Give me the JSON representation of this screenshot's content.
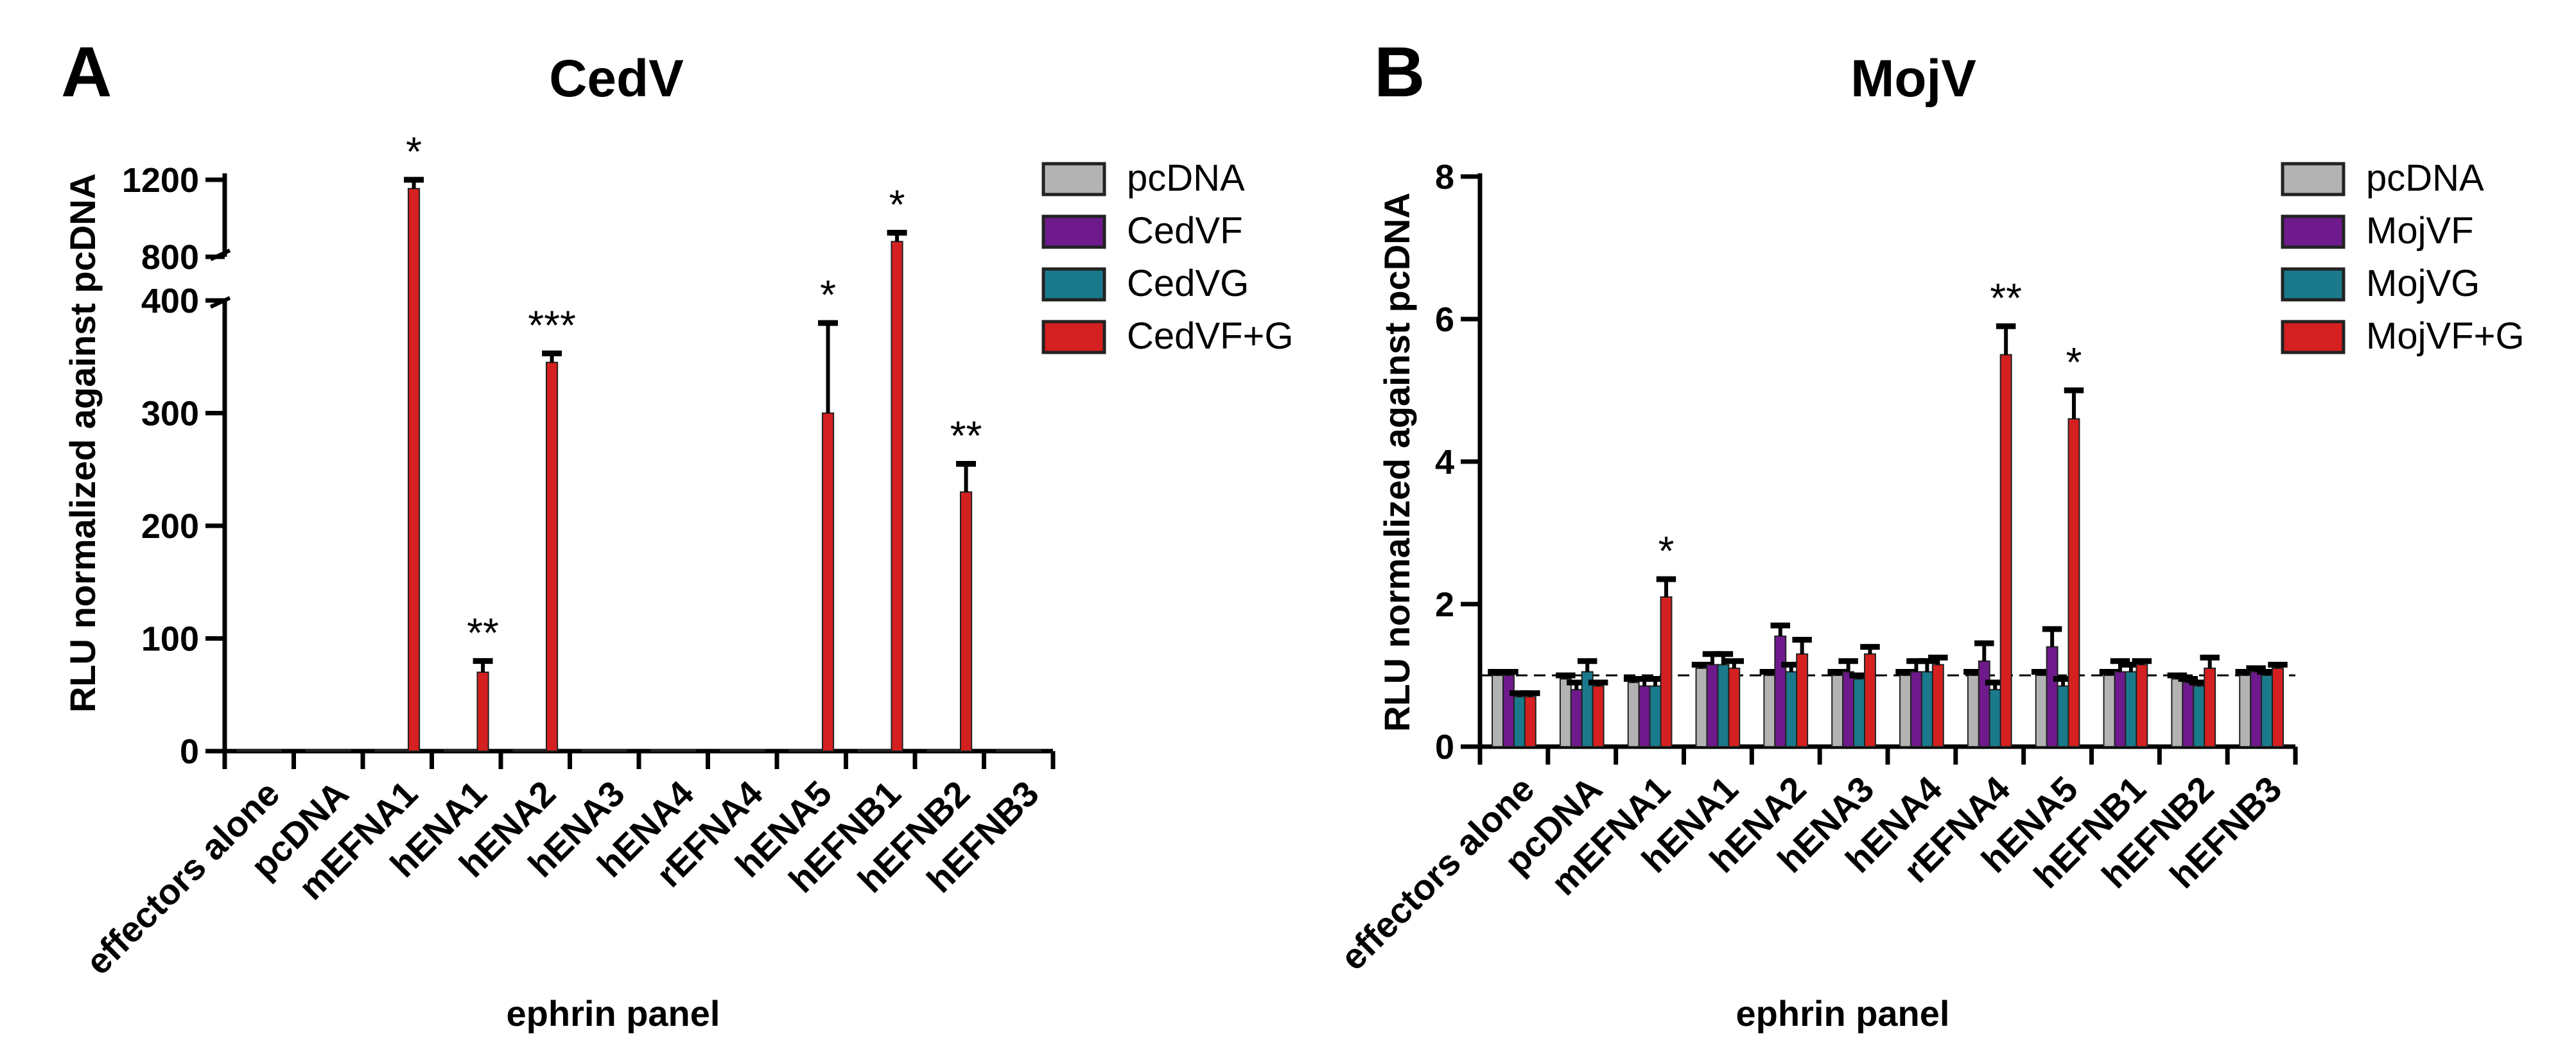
{
  "panels": [
    {
      "letter": "A",
      "chart_data": {
        "type": "bar",
        "title": "CedV",
        "xlabel": "ephrin panel",
        "ylabel": "RLU normalized against pcDNA",
        "axis_break": true,
        "y_ticks_lower": [
          0,
          100,
          200,
          300,
          400
        ],
        "y_ticks_upper": [
          800,
          1200
        ],
        "ylim": [
          0,
          1200
        ],
        "categories": [
          "effectors alone",
          "pcDNA",
          "mEFNA1",
          "hENA1",
          "hENA2",
          "hENA3",
          "hENA4",
          "rEFNA4",
          "hENA5",
          "hEFNB1",
          "hEFNB2",
          "hEFNB3"
        ],
        "series": [
          {
            "name": "pcDNA",
            "color": "#b3b3b3",
            "values": [
              1,
              1,
              1,
              1,
              1,
              1,
              1,
              1,
              1,
              1,
              1,
              1
            ],
            "errors": [
              0,
              0,
              0,
              0,
              0,
              0,
              0,
              0,
              0,
              0,
              0,
              0
            ]
          },
          {
            "name": "CedVF",
            "color": "#6e1a8c",
            "values": [
              1,
              1,
              1,
              1,
              1,
              1,
              1,
              1,
              1,
              1,
              1,
              1
            ],
            "errors": [
              0,
              0,
              0,
              0,
              0,
              0,
              0,
              0,
              0,
              0,
              0,
              0
            ]
          },
          {
            "name": "CedVG",
            "color": "#1a7a8c",
            "values": [
              1,
              1,
              1,
              1,
              1,
              1,
              1,
              1,
              1,
              1,
              1,
              1
            ],
            "errors": [
              0,
              0,
              0,
              0,
              0,
              0,
              0,
              0,
              0,
              0,
              0,
              0
            ]
          },
          {
            "name": "CedVF+G",
            "color": "#d42020",
            "values": [
              1,
              1,
              1150,
              70,
              345,
              1,
              1,
              1,
              300,
              850,
              230,
              1
            ],
            "errors": [
              0,
              0,
              50,
              10,
              8,
              0,
              0,
              0,
              80,
              50,
              25,
              0
            ]
          }
        ],
        "significance": [
          "",
          "",
          "*",
          "**",
          "***",
          "",
          "",
          "",
          "*",
          "*",
          "**",
          ""
        ],
        "legend": [
          "pcDNA",
          "CedVF",
          "CedVG",
          "CedVF+G"
        ]
      }
    },
    {
      "letter": "B",
      "chart_data": {
        "type": "bar",
        "title": "MojV",
        "xlabel": "ephrin panel",
        "ylabel": "RLU normalized against pcDNA",
        "y_ticks": [
          0,
          2,
          4,
          6,
          8
        ],
        "ylim": [
          0,
          8
        ],
        "reference_line": 1,
        "categories": [
          "effectors alone",
          "pcDNA",
          "mEFNA1",
          "hENA1",
          "hENA2",
          "hENA3",
          "hENA4",
          "rEFNA4",
          "hENA5",
          "hEFNB1",
          "hEFNB2",
          "hEFNB3"
        ],
        "series": [
          {
            "name": "pcDNA",
            "color": "#b3b3b3",
            "values": [
              1.0,
              0.95,
              0.9,
              1.1,
              1.0,
              1.0,
              1.0,
              1.0,
              1.0,
              1.0,
              0.95,
              1.0
            ],
            "errors": [
              0.05,
              0.05,
              0.05,
              0.05,
              0.05,
              0.05,
              0.05,
              0.05,
              0.05,
              0.05,
              0.05,
              0.05
            ]
          },
          {
            "name": "MojVF",
            "color": "#6e1a8c",
            "values": [
              1.0,
              0.8,
              0.85,
              1.15,
              1.55,
              1.05,
              1.05,
              1.2,
              1.4,
              1.05,
              0.9,
              1.05
            ],
            "errors": [
              0.05,
              0.1,
              0.1,
              0.15,
              0.15,
              0.15,
              0.15,
              0.25,
              0.25,
              0.15,
              0.05,
              0.05
            ]
          },
          {
            "name": "MojVG",
            "color": "#1a7a8c",
            "values": [
              0.7,
              1.05,
              0.85,
              1.15,
              1.05,
              0.95,
              1.05,
              0.8,
              0.85,
              1.05,
              0.85,
              1.0
            ],
            "errors": [
              0.05,
              0.15,
              0.1,
              0.15,
              0.1,
              0.05,
              0.15,
              0.1,
              0.1,
              0.1,
              0.05,
              0.05
            ]
          },
          {
            "name": "MojVF+G",
            "color": "#d42020",
            "values": [
              0.7,
              0.85,
              2.1,
              1.1,
              1.3,
              1.3,
              1.15,
              5.5,
              4.6,
              1.15,
              1.1,
              1.1
            ],
            "errors": [
              0.05,
              0.05,
              0.25,
              0.1,
              0.2,
              0.1,
              0.1,
              0.4,
              0.4,
              0.05,
              0.15,
              0.05
            ]
          }
        ],
        "significance": [
          "",
          "",
          "*",
          "",
          "",
          "",
          "",
          "**",
          "*",
          "",
          "",
          ""
        ],
        "legend": [
          "pcDNA",
          "MojVF",
          "MojVG",
          "MojVF+G"
        ]
      }
    }
  ]
}
